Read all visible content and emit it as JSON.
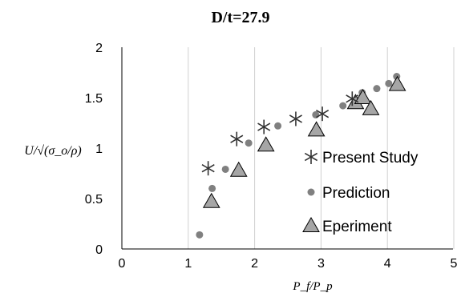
{
  "chart_data": {
    "type": "scatter",
    "title": "D/t=27.9",
    "xlabel": "P_f/P_p",
    "ylabel": "U/√(σ_o/ρ)",
    "xlim": [
      0,
      5
    ],
    "ylim": [
      0,
      2
    ],
    "x_ticks": [
      "0",
      "1",
      "2",
      "3",
      "4",
      "5"
    ],
    "y_ticks": [
      "0",
      "0.5",
      "1",
      "1.5",
      "2"
    ],
    "grid": "vertical",
    "legend_position": "right",
    "series": [
      {
        "name": "Present Study",
        "marker": "asterisk",
        "color": "#333333",
        "x": [
          1.3,
          1.73,
          2.14,
          2.62,
          3.02,
          3.47
        ],
        "y": [
          0.8,
          1.09,
          1.21,
          1.29,
          1.34,
          1.49
        ]
      },
      {
        "name": "Prediction",
        "marker": "circle",
        "color": "#808080",
        "x": [
          1.17,
          1.36,
          1.56,
          1.91,
          2.35,
          2.92,
          3.33,
          3.62,
          3.84,
          4.02,
          4.14
        ],
        "y": [
          0.14,
          0.6,
          0.79,
          1.05,
          1.22,
          1.33,
          1.42,
          1.55,
          1.59,
          1.64,
          1.71
        ]
      },
      {
        "name": "Eperiment",
        "marker": "triangle",
        "color": "#a6a6a6",
        "x": [
          1.35,
          1.76,
          2.17,
          2.93,
          3.52,
          3.63,
          3.75,
          4.15
        ],
        "y": [
          0.47,
          0.78,
          1.03,
          1.18,
          1.45,
          1.5,
          1.39,
          1.63
        ]
      }
    ]
  }
}
